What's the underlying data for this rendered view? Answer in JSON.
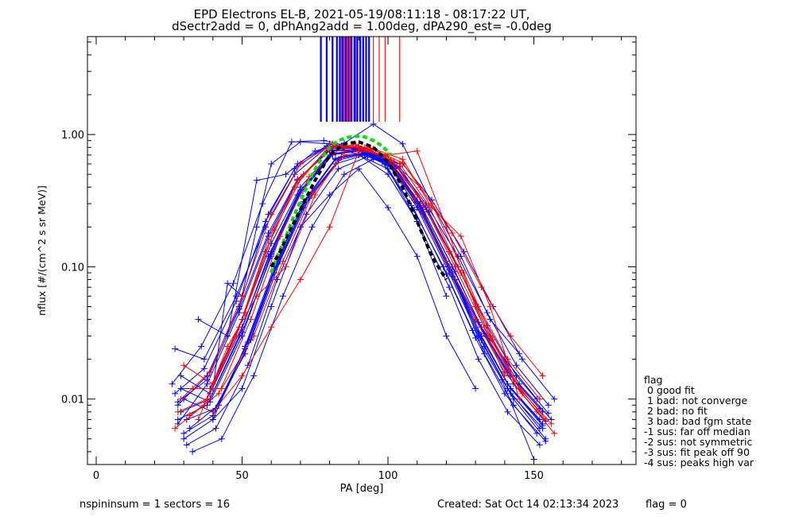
{
  "title_line1": "EPD Electrons EL-B, 2021-05-19/08:11:18 - 08:17:22 UT,",
  "title_line2": "dSectr2add = 0, dPhAng2add = 1.00deg, dPA290_est=  -0.0deg",
  "footer": {
    "left": "nspininsum =  1  sectors = 16",
    "created": "Created: Sat Oct 14 02:13:34 2023",
    "flag": "flag = 0"
  },
  "legend": {
    "title": "flag",
    "items": [
      " 0 good fit",
      " 1 bad: not converge",
      " 2 bad: no fit",
      " 3 bad: bad fgm state",
      "-1 sus: far off median",
      "-2 sus: not symmetric",
      "-3 sus: fit peak off 90",
      "-4 sus: peaks high var"
    ]
  },
  "colors": {
    "blue": "#0000ff",
    "red": "#ff0000",
    "green_fit": "#00dd00",
    "black_fit": "#000000"
  },
  "chart_data": {
    "type": "line",
    "xlabel": "PA [deg]",
    "ylabel": "nflux [#/(cm^2 s sr MeV)]",
    "xlim": [
      -3,
      185
    ],
    "ylim": [
      0.0032,
      5.5
    ],
    "yscale": "log",
    "x_ticks": [
      0,
      50,
      100,
      150
    ],
    "x_tick_labels": [
      "0",
      "50",
      "100",
      "150"
    ],
    "y_ticks": [
      0.01,
      0.1,
      1.0
    ],
    "y_tick_labels": [
      "0.01",
      "0.10",
      "1.00"
    ],
    "series": [
      {
        "color": "blue",
        "x": [
          28,
          38,
          49,
          59,
          69,
          80,
          90,
          100,
          110,
          121,
          131,
          141,
          152
        ],
        "y": [
          0.007,
          0.009,
          0.03,
          0.12,
          0.35,
          0.7,
          0.75,
          0.6,
          0.28,
          0.09,
          0.03,
          0.012,
          0.006
        ]
      },
      {
        "color": "blue",
        "x": [
          29,
          39,
          50,
          60,
          70,
          81,
          91,
          101,
          111,
          122,
          132,
          142,
          153
        ],
        "y": [
          0.012,
          0.012,
          0.04,
          0.15,
          0.4,
          0.75,
          0.78,
          0.62,
          0.3,
          0.1,
          0.035,
          0.015,
          0.008
        ]
      },
      {
        "color": "blue",
        "x": [
          30,
          40,
          51,
          61,
          71,
          82,
          92,
          102,
          112,
          123,
          133,
          143,
          154
        ],
        "y": [
          0.005,
          0.007,
          0.025,
          0.1,
          0.3,
          0.65,
          0.72,
          0.55,
          0.25,
          0.08,
          0.025,
          0.01,
          0.005
        ]
      },
      {
        "color": "blue",
        "x": [
          27,
          37,
          48,
          58,
          68,
          79,
          89,
          99,
          109,
          120,
          130,
          140,
          151
        ],
        "y": [
          0.024,
          0.02,
          0.06,
          0.2,
          0.5,
          0.8,
          0.8,
          0.65,
          0.32,
          0.11,
          0.04,
          0.02,
          0.01
        ]
      },
      {
        "color": "blue",
        "x": [
          28,
          38,
          49,
          59,
          69,
          80,
          90,
          100,
          110,
          121,
          131,
          141,
          152
        ],
        "y": [
          0.009,
          0.015,
          0.05,
          0.25,
          0.6,
          0.85,
          0.7,
          0.5,
          0.22,
          0.07,
          0.02,
          0.008,
          0.0045
        ]
      },
      {
        "color": "blue",
        "x": [
          31,
          41,
          52,
          62,
          72,
          83,
          93,
          103,
          113,
          124,
          134,
          144,
          155
        ],
        "y": [
          0.0045,
          0.006,
          0.018,
          0.08,
          0.25,
          0.55,
          0.68,
          0.58,
          0.3,
          0.12,
          0.045,
          0.018,
          0.009
        ]
      },
      {
        "color": "blue",
        "x": [
          29,
          39,
          50,
          60,
          70,
          81,
          91,
          101,
          111,
          122,
          132,
          142,
          153
        ],
        "y": [
          0.015,
          0.011,
          0.035,
          0.13,
          0.38,
          0.72,
          0.76,
          0.6,
          0.27,
          0.085,
          0.028,
          0.011,
          0.006
        ]
      },
      {
        "color": "blue",
        "x": [
          32,
          42,
          53,
          63,
          73,
          84,
          94,
          104,
          114,
          125,
          135,
          145,
          156
        ],
        "y": [
          0.006,
          0.009,
          0.028,
          0.11,
          0.33,
          0.68,
          0.74,
          0.57,
          0.26,
          0.09,
          0.03,
          0.013,
          0.007
        ]
      },
      {
        "color": "blue",
        "x": [
          26,
          36,
          47,
          57,
          67,
          78,
          88,
          98,
          108,
          119,
          129,
          139,
          150
        ],
        "y": [
          0.013,
          0.025,
          0.075,
          0.3,
          0.88,
          0.9,
          0.8,
          0.62,
          0.29,
          0.1,
          0.033,
          0.014,
          0.0035
        ]
      },
      {
        "color": "blue",
        "x": [
          30,
          40,
          51,
          61,
          71,
          82,
          92,
          102,
          112,
          123,
          133,
          143,
          154
        ],
        "y": [
          0.01,
          0.008,
          0.022,
          0.09,
          0.28,
          0.6,
          0.7,
          0.56,
          0.26,
          0.08,
          0.022,
          0.009,
          0.0048
        ]
      },
      {
        "color": "blue",
        "x": [
          28,
          38,
          49,
          59,
          69,
          80,
          90,
          100,
          110,
          121,
          131,
          141,
          152
        ],
        "y": [
          0.0065,
          0.013,
          0.045,
          0.17,
          0.45,
          0.78,
          0.79,
          0.64,
          0.31,
          0.1,
          0.038,
          0.016,
          0.0085
        ]
      },
      {
        "color": "blue",
        "x": [
          33,
          43,
          54,
          64,
          74,
          85,
          95,
          105,
          115,
          126,
          136,
          146,
          157
        ],
        "y": [
          0.004,
          0.005,
          0.015,
          0.06,
          0.2,
          0.5,
          0.65,
          0.6,
          0.32,
          0.13,
          0.05,
          0.02,
          0.01
        ]
      },
      {
        "color": "blue",
        "x": [
          29,
          39,
          50,
          60,
          70,
          81,
          91,
          101,
          111,
          122,
          132,
          142,
          153
        ],
        "y": [
          0.008,
          0.01,
          0.032,
          0.12,
          0.36,
          0.7,
          0.77,
          0.6,
          0.28,
          0.09,
          0.03,
          0.012,
          0.0065
        ]
      },
      {
        "color": "blue",
        "x": [
          27,
          37,
          48,
          58,
          68,
          79,
          89,
          99,
          109,
          120,
          130,
          140,
          151
        ],
        "y": [
          0.011,
          0.017,
          0.055,
          0.22,
          0.55,
          0.82,
          0.78,
          0.6,
          0.27,
          0.088,
          0.029,
          0.011,
          0.0055
        ]
      },
      {
        "color": "blue",
        "x": [
          30,
          40,
          51,
          61,
          71,
          82,
          92,
          102,
          112,
          123,
          133,
          143,
          154
        ],
        "y": [
          0.0055,
          0.0075,
          0.024,
          0.095,
          0.31,
          0.66,
          0.73,
          0.58,
          0.27,
          0.092,
          0.031,
          0.013,
          0.0068
        ]
      },
      {
        "color": "blue",
        "x": [
          28,
          38,
          49,
          59,
          69,
          80,
          90,
          100,
          110,
          121,
          131,
          141,
          152
        ],
        "y": [
          0.0095,
          0.014,
          0.048,
          0.18,
          0.46,
          0.76,
          0.77,
          0.62,
          0.3,
          0.095,
          0.032,
          0.013,
          0.007
        ]
      },
      {
        "color": "blue",
        "x": [
          31,
          41,
          52,
          62,
          72,
          83,
          93,
          103,
          113,
          124,
          134,
          144,
          155
        ],
        "y": [
          0.007,
          0.0085,
          0.027,
          0.105,
          0.32,
          0.64,
          0.72,
          0.57,
          0.28,
          0.1,
          0.036,
          0.015,
          0.0078
        ]
      },
      {
        "color": "blue",
        "x": [
          29,
          39,
          50,
          60,
          70,
          81,
          91,
          101,
          111,
          122,
          132,
          142,
          153
        ],
        "y": [
          0.012,
          0.0095,
          0.03,
          0.125,
          0.37,
          0.71,
          0.76,
          0.61,
          0.29,
          0.092,
          0.03,
          0.012,
          0.0063
        ]
      },
      {
        "color": "blue",
        "x": [
          40,
          45,
          50,
          55,
          60,
          70,
          80,
          90,
          100,
          110,
          120
        ],
        "y": [
          0.012,
          0.075,
          0.06,
          0.2,
          0.6,
          0.88,
          0.85,
          0.7,
          0.55,
          0.22,
          0.06
        ]
      },
      {
        "color": "blue",
        "x": [
          35,
          45,
          55,
          65,
          75,
          85,
          95,
          105,
          115,
          125,
          135,
          145
        ],
        "y": [
          0.04,
          0.03,
          0.45,
          0.5,
          0.75,
          0.86,
          1.2,
          0.85,
          0.3,
          0.12,
          0.04,
          0.022
        ]
      },
      {
        "color": "blue",
        "x": [
          40,
          50,
          60,
          70,
          80,
          90,
          100,
          110,
          120,
          130
        ],
        "y": [
          0.007,
          0.012,
          0.05,
          0.2,
          0.35,
          0.55,
          0.28,
          0.12,
          0.03,
          0.012
        ]
      },
      {
        "color": "red",
        "x": [
          28,
          38,
          49,
          59,
          69,
          80,
          90,
          100,
          110,
          121,
          131,
          141,
          152
        ],
        "y": [
          0.008,
          0.01,
          0.035,
          0.16,
          0.45,
          0.8,
          0.82,
          0.65,
          0.35,
          0.13,
          0.05,
          0.02,
          0.01
        ]
      },
      {
        "color": "red",
        "x": [
          30,
          40,
          51,
          61,
          71,
          82,
          92,
          102,
          112,
          123,
          133,
          143,
          154
        ],
        "y": [
          0.018,
          0.013,
          0.045,
          0.19,
          0.5,
          0.82,
          0.8,
          0.62,
          0.3,
          0.1,
          0.035,
          0.014,
          0.007
        ]
      },
      {
        "color": "red",
        "x": [
          27,
          37,
          48,
          58,
          68,
          79,
          89,
          99,
          109,
          120,
          130,
          140,
          151
        ],
        "y": [
          0.006,
          0.009,
          0.03,
          0.13,
          0.4,
          0.78,
          0.84,
          0.68,
          0.33,
          0.11,
          0.04,
          0.016,
          0.008
        ]
      },
      {
        "color": "red",
        "x": [
          32,
          42,
          53,
          63,
          73,
          84,
          94,
          104,
          114,
          125,
          135,
          145,
          156
        ],
        "y": [
          0.0075,
          0.011,
          0.04,
          0.17,
          0.48,
          0.8,
          0.79,
          0.6,
          0.29,
          0.09,
          0.03,
          0.012,
          0.0065
        ]
      },
      {
        "color": "red",
        "x": [
          29,
          39,
          50,
          60,
          70,
          81,
          91,
          101,
          111,
          122,
          132,
          142,
          153
        ],
        "y": [
          0.01,
          0.016,
          0.06,
          0.25,
          0.6,
          0.85,
          0.78,
          0.64,
          0.4,
          0.18,
          0.07,
          0.03,
          0.015
        ]
      },
      {
        "color": "red",
        "x": [
          35,
          45,
          55,
          65,
          75,
          85,
          95,
          105,
          115,
          125,
          135,
          145
        ],
        "y": [
          0.007,
          0.025,
          0.06,
          0.1,
          0.35,
          0.75,
          0.78,
          0.65,
          0.28,
          0.17,
          0.05,
          0.01
        ]
      },
      {
        "color": "red",
        "x": [
          40,
          50,
          60,
          70,
          80,
          90,
          100,
          110,
          120,
          130,
          140
        ],
        "y": [
          0.008,
          0.015,
          0.035,
          0.08,
          0.2,
          0.75,
          0.7,
          0.75,
          0.2,
          0.05,
          0.015
        ]
      },
      {
        "color": "red",
        "x": [
          33,
          43,
          54,
          64,
          74,
          85,
          95,
          105,
          115,
          126,
          136,
          146,
          157
        ],
        "y": [
          0.012,
          0.012,
          0.03,
          0.11,
          0.35,
          0.7,
          0.77,
          0.61,
          0.3,
          0.09,
          0.028,
          0.011,
          0.0055
        ]
      }
    ],
    "vertical_lines": {
      "blue_x": [
        77,
        79,
        81,
        82.5,
        83.5,
        84.5,
        85.5,
        86.5,
        87.5,
        88.5,
        89.5,
        90.5,
        91.5,
        92.5,
        93.5
      ],
      "red_x": [
        84,
        85,
        86,
        87,
        89,
        95,
        97,
        99,
        104
      ],
      "y_bottom": 1.25
    },
    "fit_curves": [
      {
        "color": "green_fit",
        "x": [
          60,
          62,
          65,
          68,
          71,
          74,
          77,
          80,
          83,
          86,
          89,
          92,
          95,
          98,
          101
        ],
        "y": [
          0.09,
          0.12,
          0.17,
          0.25,
          0.35,
          0.5,
          0.65,
          0.8,
          0.9,
          0.95,
          0.97,
          0.96,
          0.9,
          0.82,
          0.7
        ]
      },
      {
        "color": "black_fit",
        "x": [
          60,
          63,
          67,
          71,
          75,
          80,
          85,
          90,
          95,
          100,
          105,
          110,
          115,
          120
        ],
        "y": [
          0.1,
          0.13,
          0.2,
          0.3,
          0.45,
          0.7,
          0.85,
          0.88,
          0.8,
          0.62,
          0.4,
          0.22,
          0.12,
          0.08
        ]
      }
    ]
  }
}
